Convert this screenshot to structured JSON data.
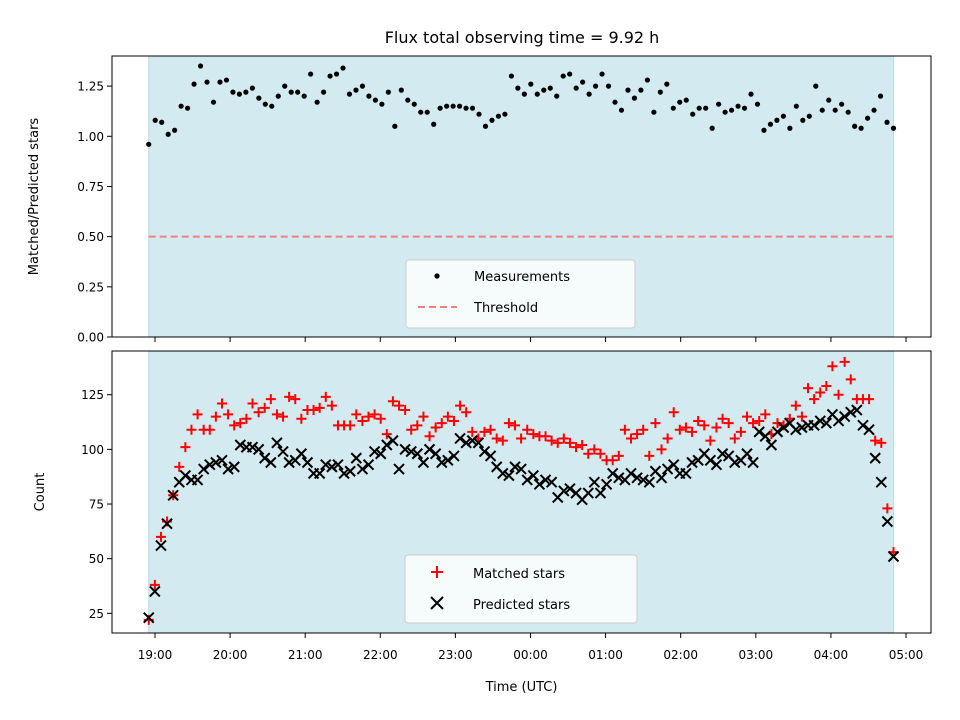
{
  "chart_data": [
    {
      "type": "scatter",
      "title": "Flux total observing time = 9.92 h",
      "xlabel": "",
      "ylabel": "Matched/Predicted stars",
      "ylim": [
        0.0,
        1.4
      ],
      "yticks": [
        "0.00",
        "0.25",
        "0.50",
        "0.75",
        "1.00",
        "1.25"
      ],
      "x_start": "18:55",
      "x_end": "04:50",
      "observing_window": [
        "18:55",
        "04:50"
      ],
      "observing_window_color": "#d3eaf0",
      "threshold": 0.5,
      "series": [
        {
          "name": "Measurements",
          "color": "#000000",
          "values": [
            0.96,
            1.08,
            1.07,
            1.01,
            1.03,
            1.15,
            1.14,
            1.26,
            1.35,
            1.27,
            1.17,
            1.27,
            1.28,
            1.22,
            1.21,
            1.22,
            1.24,
            1.19,
            1.16,
            1.15,
            1.2,
            1.25,
            1.22,
            1.22,
            1.2,
            1.31,
            1.17,
            1.22,
            1.3,
            1.31,
            1.34,
            1.21,
            1.23,
            1.25,
            1.2,
            1.18,
            1.16,
            1.22,
            1.05,
            1.23,
            1.18,
            1.16,
            1.12,
            1.12,
            1.06,
            1.14,
            1.15,
            1.15,
            1.15,
            1.14,
            1.14,
            1.11,
            1.05,
            1.08,
            1.1,
            1.11,
            1.3,
            1.24,
            1.21,
            1.26,
            1.21,
            1.23,
            1.24,
            1.2,
            1.3,
            1.31,
            1.24,
            1.27,
            1.21,
            1.25,
            1.31,
            1.25,
            1.17,
            1.13,
            1.23,
            1.19,
            1.23,
            1.28,
            1.12,
            1.22,
            1.26,
            1.14,
            1.17,
            1.18,
            1.11,
            1.14,
            1.14,
            1.04,
            1.16,
            1.12,
            1.13,
            1.15,
            1.14,
            1.21,
            1.16,
            1.03,
            1.06,
            1.08,
            1.1,
            1.04,
            1.15,
            1.08,
            1.1,
            1.25,
            1.13,
            1.18,
            1.13,
            1.16,
            1.12,
            1.05,
            1.04,
            1.09,
            1.13,
            1.2,
            1.07,
            1.04
          ]
        },
        {
          "name": "Threshold",
          "color": "#f08080",
          "values": [
            0.5
          ]
        }
      ],
      "legend": "lower-center"
    },
    {
      "type": "scatter",
      "title": "",
      "xlabel": "Time (UTC)",
      "ylabel": "Count",
      "ylim": [
        16,
        145
      ],
      "yticks": [
        "25",
        "50",
        "75",
        "100",
        "125"
      ],
      "categories": [
        "19:00",
        "20:00",
        "21:00",
        "22:00",
        "23:00",
        "00:00",
        "01:00",
        "02:00",
        "03:00",
        "04:00",
        "05:00"
      ],
      "x_start": "18:55",
      "x_end": "04:50",
      "observing_window": [
        "18:55",
        "04:50"
      ],
      "observing_window_color": "#d3eaf0",
      "series": [
        {
          "name": "Matched stars",
          "color": "#ff0000",
          "values": [
            22,
            38,
            60,
            67,
            79,
            92,
            101,
            109,
            116,
            109,
            109,
            115,
            121,
            116,
            111,
            112,
            114,
            121,
            117,
            119,
            123,
            116,
            115,
            124,
            123,
            114,
            118,
            118,
            119,
            124,
            120,
            111,
            111,
            111,
            116,
            113,
            115,
            116,
            114,
            107,
            122,
            120,
            118,
            109,
            111,
            115,
            106,
            110,
            112,
            115,
            113,
            120,
            117,
            108,
            105,
            108,
            109,
            105,
            104,
            112,
            111,
            105,
            109,
            107,
            106,
            106,
            104,
            103,
            105,
            103,
            101,
            102,
            98,
            100,
            98,
            95,
            95,
            97,
            109,
            105,
            107,
            109,
            97,
            112,
            100,
            105,
            117,
            109,
            110,
            108,
            113,
            111,
            104,
            110,
            114,
            112,
            105,
            108,
            115,
            112,
            113,
            116,
            107,
            112,
            111,
            114,
            120,
            115,
            128,
            123,
            126,
            129,
            138,
            125,
            140,
            132,
            123,
            123,
            123,
            104,
            103,
            73,
            53
          ]
        },
        {
          "name": "Predicted stars",
          "color": "#000000",
          "values": [
            23,
            35,
            56,
            66,
            79,
            85,
            88,
            86,
            86,
            91,
            93,
            94,
            95,
            91,
            92,
            102,
            101,
            101,
            100,
            96,
            94,
            103,
            99,
            94,
            95,
            98,
            94,
            89,
            89,
            93,
            92,
            93,
            89,
            90,
            96,
            91,
            93,
            99,
            98,
            102,
            104,
            91,
            100,
            99,
            98,
            94,
            100,
            98,
            94,
            95,
            97,
            105,
            103,
            104,
            103,
            99,
            97,
            92,
            89,
            88,
            92,
            91,
            86,
            88,
            84,
            86,
            85,
            78,
            81,
            82,
            80,
            77,
            80,
            85,
            80,
            84,
            89,
            87,
            86,
            89,
            87,
            86,
            85,
            90,
            87,
            91,
            93,
            89,
            89,
            94,
            95,
            98,
            95,
            93,
            98,
            97,
            94,
            95,
            98,
            94,
            108,
            106,
            102,
            108,
            110,
            112,
            109,
            110,
            111,
            111,
            113,
            112,
            116,
            113,
            115,
            117,
            118,
            111,
            109,
            96,
            85,
            67,
            51
          ]
        }
      ],
      "legend": "lower-center"
    }
  ]
}
